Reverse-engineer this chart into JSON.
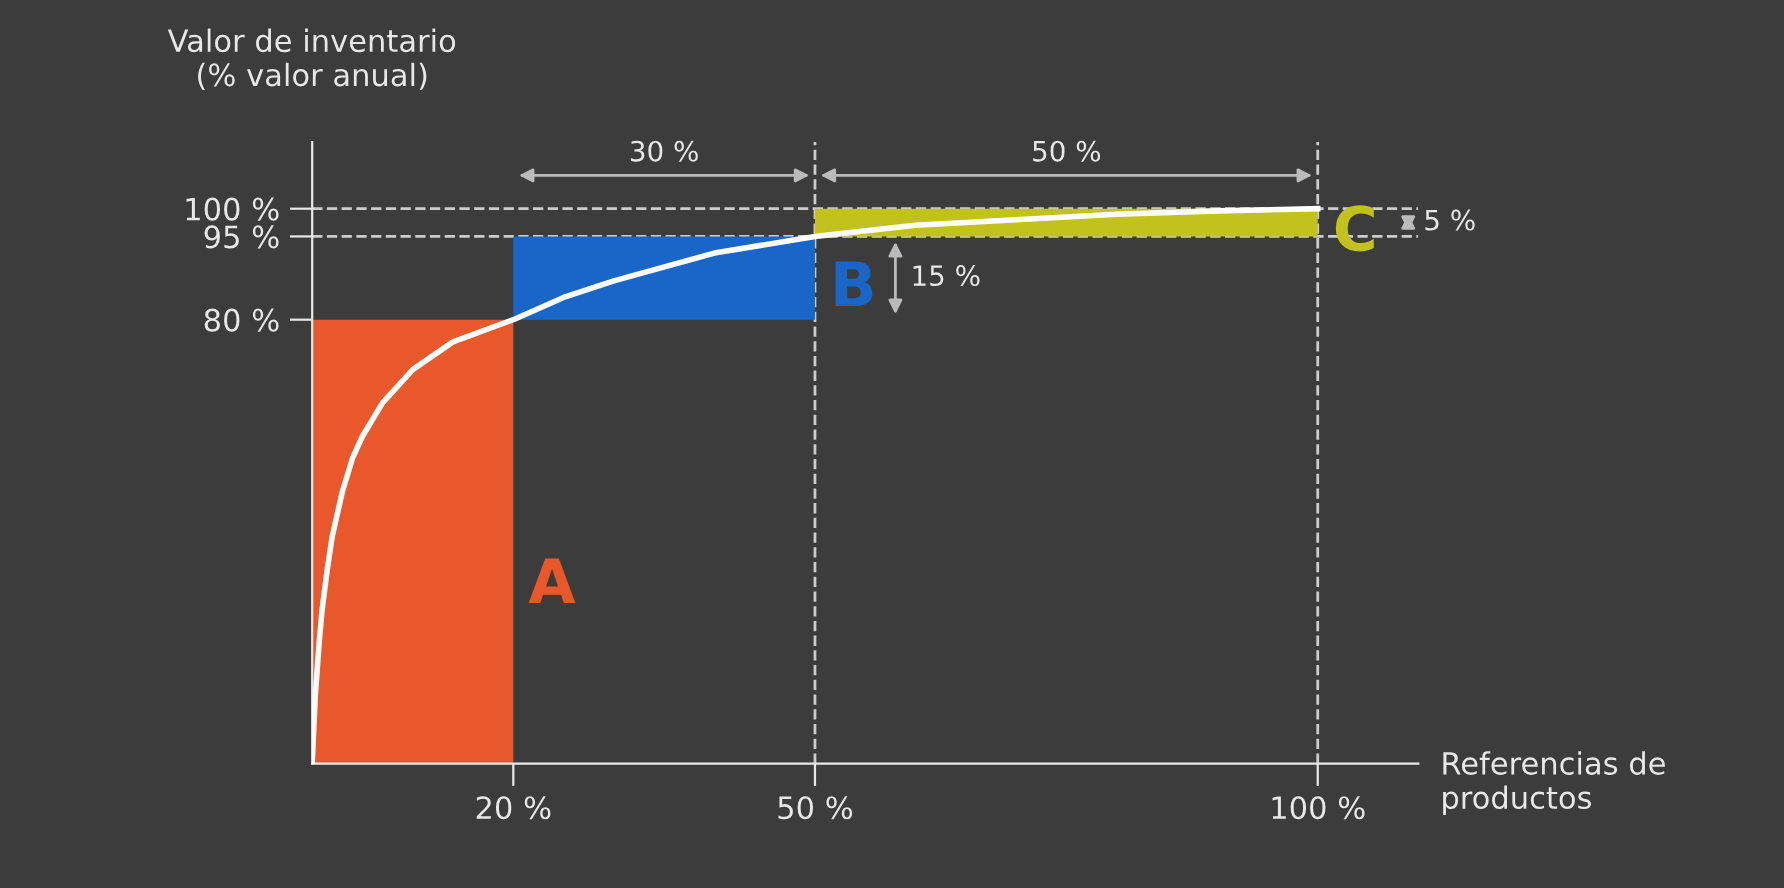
{
  "chart_data": {
    "type": "bar",
    "xlabel": "Referencias de\nproductos",
    "ylabel": "Valor de inventario\n(% valor anual)",
    "xlim": [
      0,
      110
    ],
    "ylim": [
      0,
      112
    ],
    "xticks": [
      {
        "value": 20,
        "label": "20 %"
      },
      {
        "value": 50,
        "label": "50 %"
      },
      {
        "value": 100,
        "label": "100 %"
      }
    ],
    "yticks": [
      {
        "value": 80,
        "label": "80 %"
      },
      {
        "value": 95,
        "label": "95 %"
      },
      {
        "value": 100,
        "label": "100 %"
      }
    ],
    "series": [
      {
        "name": "A",
        "color": "#e8582a",
        "x": [
          10
        ],
        "base": [
          0
        ],
        "values": [
          80
        ]
      },
      {
        "name": "B",
        "color": "#1a66c8",
        "x": [
          35
        ],
        "base": [
          80
        ],
        "values": [
          15
        ]
      },
      {
        "name": "C",
        "color": "#c2c21e",
        "x": [
          75
        ],
        "base": [
          95
        ],
        "values": [
          5
        ]
      },
      {
        "type": "line",
        "color": "#ffffff",
        "x": [
          0,
          0.3,
          0.7,
          1,
          1.5,
          2,
          3,
          4,
          5,
          7,
          10,
          14,
          20,
          25,
          30,
          40,
          50,
          60,
          70,
          80,
          90,
          100
        ],
        "values": [
          0,
          12,
          22,
          28,
          35,
          41,
          49,
          55,
          59,
          65,
          71,
          76,
          80,
          84,
          87,
          92,
          95,
          97,
          98,
          99,
          99.6,
          100
        ]
      }
    ],
    "ref_lines": [
      {
        "axis": "y",
        "value": 100,
        "label": null,
        "color": "#cccccc",
        "line_style": "dashed"
      },
      {
        "axis": "y",
        "value": 95,
        "label": null,
        "color": "#cccccc",
        "line_style": "dashed"
      },
      {
        "axis": "x",
        "value": 50,
        "label": null,
        "color": "#cccccc",
        "line_style": "dashed"
      },
      {
        "axis": "x",
        "value": 100,
        "label": null,
        "color": "#cccccc",
        "line_style": "dashed"
      }
    ],
    "annotations": [
      "30 %",
      "50 %",
      "15 %",
      "5 %"
    ],
    "grid": false
  }
}
